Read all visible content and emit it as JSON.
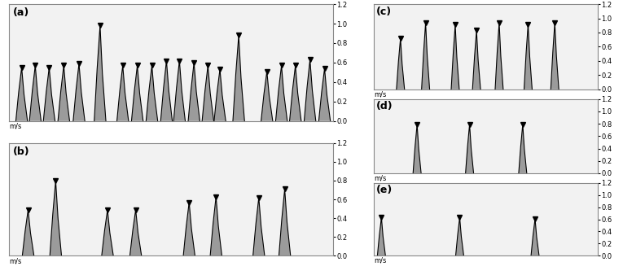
{
  "chart_data": [
    {
      "type": "line",
      "title": "(a)",
      "y_label": "m/s",
      "marker": "v",
      "color": "#000000",
      "tick_labels": "y",
      "x": [
        3.8,
        8,
        12.3,
        16.8,
        21.5,
        28,
        35,
        39.5,
        44,
        48.5,
        52.5,
        57,
        61.3,
        65,
        70.8,
        79.5,
        84,
        88.3,
        92.8,
        97.3
      ],
      "values": [
        0.55,
        0.57,
        0.55,
        0.57,
        0.59,
        0.98,
        0.57,
        0.57,
        0.57,
        0.62,
        0.62,
        0.6,
        0.57,
        0.53,
        0.88,
        0.51,
        0.57,
        0.57,
        0.63,
        0.54
      ],
      "xlim": [
        0,
        100
      ],
      "ylim": [
        0,
        1.2
      ],
      "yticks": [
        {
          "value": 0,
          "label": "0.0"
        },
        {
          "value": 0.2,
          "label": "0.2"
        },
        {
          "value": 0.4,
          "label": "0.4"
        },
        {
          "value": 0.6,
          "label": "0.6"
        },
        {
          "value": 0.8,
          "label": "0.8"
        },
        {
          "value": 1,
          "label": "1.0"
        },
        {
          "value": 1.2,
          "label": "1.2"
        }
      ]
    },
    {
      "type": "line",
      "title": "(b)",
      "y_label": "m/s",
      "marker": "v",
      "color": "#000000",
      "tick_labels": "y",
      "x": [
        5.8,
        14.3,
        30.3,
        39,
        55.5,
        63.8,
        77,
        85
      ],
      "values": [
        0.49,
        0.8,
        0.49,
        0.49,
        0.57,
        0.63,
        0.62,
        0.71
      ],
      "xlim": [
        0,
        100
      ],
      "ylim": [
        0,
        1.2
      ],
      "yticks": [
        {
          "value": 0,
          "label": "0.0"
        },
        {
          "value": 0.2,
          "label": "0.2"
        },
        {
          "value": 0.4,
          "label": "0.4"
        },
        {
          "value": 0.6,
          "label": "0.6"
        },
        {
          "value": 0.8,
          "label": "0.8"
        },
        {
          "value": 1,
          "label": "1.0"
        },
        {
          "value": 1.2,
          "label": "1.2"
        }
      ]
    },
    {
      "type": "line",
      "title": "(c)",
      "y_label": "m/s",
      "marker": "v",
      "color": "#000000",
      "tick_labels": "y",
      "x": [
        11.9,
        23.1,
        36.3,
        45.8,
        55.9,
        68.8,
        80.7
      ],
      "values": [
        0.72,
        0.94,
        0.91,
        0.83,
        0.94,
        0.92,
        0.94
      ],
      "xlim": [
        0,
        100
      ],
      "ylim": [
        0,
        1.2
      ],
      "yticks": [
        {
          "value": 0,
          "label": "0.0"
        },
        {
          "value": 0.2,
          "label": "0.2"
        },
        {
          "value": 0.4,
          "label": "0.4"
        },
        {
          "value": 0.6,
          "label": "0.6"
        },
        {
          "value": 0.8,
          "label": "0.8"
        },
        {
          "value": 1,
          "label": "1.0"
        },
        {
          "value": 1.2,
          "label": "1.2"
        }
      ]
    },
    {
      "type": "line",
      "title": "(d)",
      "y_label": "m/s",
      "marker": "v",
      "color": "#000000",
      "tick_labels": "y",
      "x": [
        19.3,
        42.7,
        66.4
      ],
      "values": [
        0.79,
        0.79,
        0.79
      ],
      "xlim": [
        0,
        100
      ],
      "ylim": [
        0,
        1.2
      ],
      "yticks": [
        {
          "value": 0,
          "label": "0.0"
        },
        {
          "value": 0.2,
          "label": "0.2"
        },
        {
          "value": 0.4,
          "label": "0.4"
        },
        {
          "value": 0.6,
          "label": "0.6"
        },
        {
          "value": 0.8,
          "label": "0.8"
        },
        {
          "value": 1,
          "label": "1.0"
        },
        {
          "value": 1.2,
          "label": "1.2"
        }
      ]
    },
    {
      "type": "line",
      "title": "(e)",
      "y_label": "m/s",
      "marker": "v",
      "color": "#000000",
      "tick_labels": "y",
      "x": [
        3.4,
        38.3,
        71.9
      ],
      "values": [
        0.63,
        0.63,
        0.61
      ],
      "xlim": [
        0,
        100
      ],
      "ylim": [
        0,
        1.2
      ],
      "yticks": [
        {
          "value": 0,
          "label": "0.0"
        },
        {
          "value": 0.2,
          "label": "0.2"
        },
        {
          "value": 0.4,
          "label": "0.4"
        },
        {
          "value": 0.6,
          "label": "0.6"
        },
        {
          "value": 0.8,
          "label": "0.8"
        },
        {
          "value": 1,
          "label": "1.0"
        },
        {
          "value": 1.2,
          "label": "1.2"
        }
      ]
    }
  ]
}
